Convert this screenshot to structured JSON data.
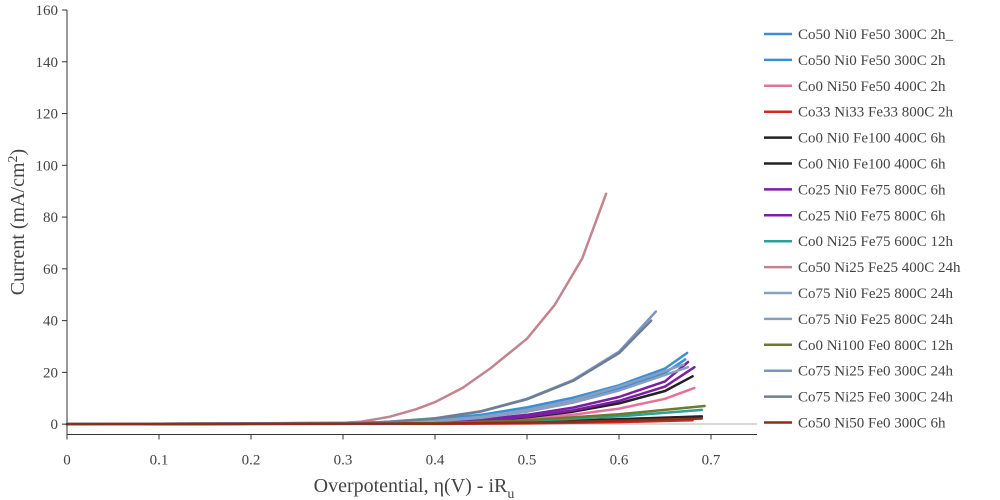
{
  "chart_data": {
    "type": "line",
    "xlabel": "Overpotential, η(V) - iR",
    "xlabel_sub": "u",
    "ylabel": "Current (mA/cm",
    "ylabel_sup": "2",
    "ylabel_end": ")",
    "xlim": [
      0,
      0.75
    ],
    "ylim": [
      -4,
      160
    ],
    "xticks": [
      0,
      0.1,
      0.2,
      0.3,
      0.4,
      0.5,
      0.6,
      0.7
    ],
    "xtick_labels": [
      "0",
      "0.1",
      "0.2",
      "0.3",
      "0.4",
      "0.5",
      "0.6",
      "0.7"
    ],
    "yticks": [
      0,
      20,
      40,
      60,
      80,
      100,
      120,
      140,
      160
    ],
    "ytick_labels": [
      "0",
      "20",
      "40",
      "60",
      "80",
      "100",
      "120",
      "140",
      "160"
    ],
    "grid": false,
    "legend_position": "right",
    "series": [
      {
        "name": "Co50 Ni0 Fe50 300C 2h_",
        "color": "#3a8fd9",
        "x": [
          0,
          0.3,
          0.35,
          0.4,
          0.45,
          0.5,
          0.55,
          0.6,
          0.65,
          0.674
        ],
        "y": [
          0,
          0.3,
          0.8,
          1.8,
          3.6,
          6.5,
          10.2,
          15,
          21.5,
          27.5
        ]
      },
      {
        "name": "Co50 Ni0 Fe50 300C 2h",
        "color": "#3a8fd9",
        "x": [
          0,
          0.3,
          0.35,
          0.4,
          0.45,
          0.5,
          0.55,
          0.6,
          0.65,
          0.672
        ],
        "y": [
          0,
          0.3,
          0.7,
          1.6,
          3.2,
          5.8,
          9.3,
          13.8,
          19.8,
          25
        ]
      },
      {
        "name": "Co0 Ni50 Fe50 400C 2h",
        "color": "#e8719b",
        "x": [
          0,
          0.35,
          0.4,
          0.45,
          0.5,
          0.55,
          0.6,
          0.65,
          0.682
        ],
        "y": [
          0,
          0.2,
          0.5,
          1.1,
          2.1,
          3.6,
          6,
          9.8,
          14
        ]
      },
      {
        "name": "Co33 Ni33 Fe33 800C 2h",
        "color": "#d62728",
        "x": [
          0,
          0.4,
          0.5,
          0.6,
          0.68
        ],
        "y": [
          0,
          0.1,
          0.3,
          0.8,
          1.5
        ]
      },
      {
        "name": "Co0 Ni0 Fe100 400C 6h",
        "color": "#222222",
        "x": [
          0,
          0.35,
          0.4,
          0.45,
          0.5,
          0.55,
          0.6,
          0.65,
          0.68
        ],
        "y": [
          0,
          0.2,
          0.6,
          1.3,
          2.7,
          4.8,
          8,
          12.8,
          18.5
        ]
      },
      {
        "name": "Co0 Ni0 Fe100 400C 6h",
        "color": "#222222",
        "x": [
          0,
          0.4,
          0.5,
          0.6,
          0.69
        ],
        "y": [
          0,
          0.3,
          0.9,
          1.9,
          3
        ]
      },
      {
        "name": "Co25 Ni0 Fe75 800C 6h",
        "color": "#7b1fa2",
        "x": [
          0,
          0.35,
          0.4,
          0.45,
          0.5,
          0.55,
          0.6,
          0.65,
          0.675
        ],
        "y": [
          0,
          0.3,
          0.8,
          1.8,
          3.6,
          6.4,
          10.5,
          16.5,
          24
        ]
      },
      {
        "name": "Co25 Ni0 Fe75 800C 6h",
        "color": "#7b1fa2",
        "x": [
          0,
          0.35,
          0.4,
          0.45,
          0.5,
          0.55,
          0.6,
          0.65,
          0.682
        ],
        "y": [
          0,
          0.2,
          0.6,
          1.4,
          2.9,
          5.3,
          9,
          14.5,
          22
        ]
      },
      {
        "name": "Co0 Ni25 Fe75 600C 12h",
        "color": "#2aa198",
        "x": [
          0,
          0.4,
          0.5,
          0.6,
          0.69
        ],
        "y": [
          0,
          0.3,
          1.2,
          3,
          5.5
        ]
      },
      {
        "name": "Co50 Ni25 Fe25 400C 24h",
        "color": "#c2848e",
        "x": [
          0,
          0.3,
          0.32,
          0.35,
          0.38,
          0.4,
          0.43,
          0.46,
          0.5,
          0.53,
          0.56,
          0.586
        ],
        "y": [
          0,
          0.5,
          1,
          2.8,
          5.8,
          8.5,
          14,
          21.5,
          33,
          46,
          64,
          89
        ]
      },
      {
        "name": "Co75 Ni0 Fe25 800C 24h",
        "color": "#8a9fbf",
        "x": [
          0,
          0.35,
          0.4,
          0.45,
          0.5,
          0.55,
          0.6,
          0.65,
          0.67
        ],
        "y": [
          0,
          0.5,
          1.3,
          2.8,
          5.5,
          9.3,
          14.5,
          20.5,
          23
        ]
      },
      {
        "name": "Co75 Ni0 Fe25 800C 24h",
        "color": "#8a9fbf",
        "x": [
          0,
          0.35,
          0.4,
          0.45,
          0.5,
          0.55,
          0.6,
          0.65,
          0.675
        ],
        "y": [
          0,
          0.4,
          1.1,
          2.4,
          4.8,
          8.3,
          13,
          19,
          22
        ]
      },
      {
        "name": "Co0 Ni100 Fe0 800C 12h",
        "color": "#6b7a2e",
        "x": [
          0,
          0.4,
          0.5,
          0.6,
          0.693
        ],
        "y": [
          0,
          0.4,
          1.5,
          3.8,
          7
        ]
      },
      {
        "name": "Co75 Ni25 Fe0 300C 24h",
        "color": "#7a95c9",
        "x": [
          0,
          0.32,
          0.35,
          0.4,
          0.45,
          0.5,
          0.55,
          0.6,
          0.64
        ],
        "y": [
          0,
          0.5,
          0.9,
          2.3,
          5,
          9.8,
          17,
          28,
          43.5
        ]
      },
      {
        "name": "Co75 Ni25 Fe0 300C 24h",
        "color": "#6e7f92",
        "x": [
          0,
          0.32,
          0.35,
          0.4,
          0.45,
          0.5,
          0.55,
          0.6,
          0.635
        ],
        "y": [
          0,
          0.5,
          0.9,
          2.2,
          4.9,
          9.6,
          16.7,
          27.4,
          40
        ]
      },
      {
        "name": "Co50 Ni50 Fe0 300C 6h",
        "color": "#8b2f1c",
        "x": [
          0,
          0.4,
          0.5,
          0.6,
          0.69
        ],
        "y": [
          0,
          0.2,
          0.6,
          1.3,
          2.2
        ]
      }
    ]
  }
}
